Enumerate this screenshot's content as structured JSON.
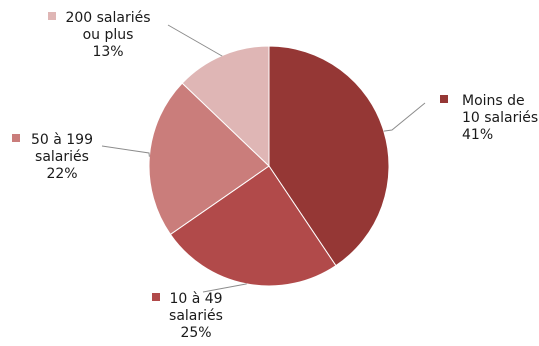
{
  "chart_data": {
    "type": "pie",
    "title": "",
    "legend": "none",
    "slices": [
      {
        "label_lines": [
          "Moins de",
          "10 salariés"
        ],
        "value": 41,
        "value_label": "41%",
        "color": "#953735"
      },
      {
        "label_lines": [
          "10 à 49",
          "salariés"
        ],
        "value": 25,
        "value_label": "25%",
        "color": "#B14A4A"
      },
      {
        "label_lines": [
          "50 à 199",
          "salariés"
        ],
        "value": 22,
        "value_label": "22%",
        "color": "#CA7D7B"
      },
      {
        "label_lines": [
          "200 salariés",
          "ou plus"
        ],
        "value": 13,
        "value_label": "13%",
        "color": "#DFB6B5"
      }
    ]
  }
}
